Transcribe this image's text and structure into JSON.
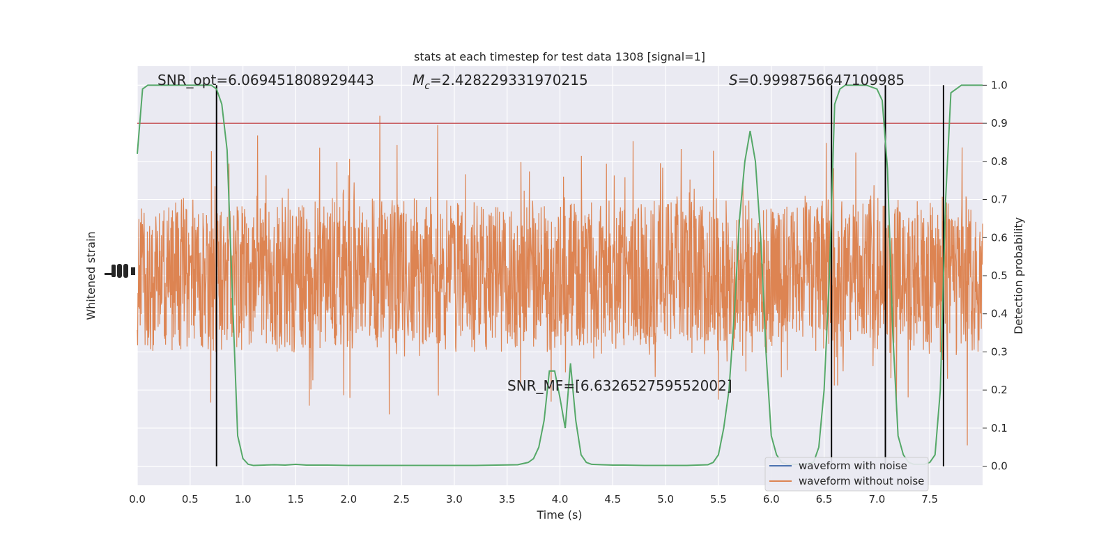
{
  "chart_data": {
    "type": "line",
    "title": "stats at each timestep for test data 1308 [signal=1]",
    "xlabel": "Time (s)",
    "ylabel_left": "Whitened strain",
    "ylabel_right": "Detection probability",
    "xlim": [
      0.0,
      8.0
    ],
    "ylim_right": [
      -0.05,
      1.05
    ],
    "x_ticks": [
      "0.0",
      "0.5",
      "1.0",
      "1.5",
      "2.0",
      "2.5",
      "3.0",
      "3.5",
      "4.0",
      "4.5",
      "5.0",
      "5.5",
      "6.0",
      "6.5",
      "7.0",
      "7.5"
    ],
    "y_ticks_right": [
      "0.0",
      "0.1",
      "0.2",
      "0.3",
      "0.4",
      "0.5",
      "0.6",
      "0.7",
      "0.8",
      "0.9",
      "1.0"
    ],
    "grid": true,
    "legend_position": "lower-right",
    "legend": [
      "waveform with noise",
      "waveform without noise"
    ],
    "annotations": {
      "snr_opt": "SNR_opt=6.069451808929443",
      "mc_symbol": "M",
      "mc_subscript": "c",
      "mc_value": "=2.428229331970215",
      "s_symbol": "S",
      "s_value": "=0.9998756647109985",
      "snr_mf": "SNR_MF=[6.632652759552002]"
    },
    "threshold": 0.9,
    "vertical_lines_x": [
      0.75,
      6.57,
      7.08,
      7.63
    ],
    "series": [
      {
        "name": "waveform with noise",
        "color": "#4c72b0",
        "style": "noise trace hidden behind waveform without noise"
      },
      {
        "name": "waveform without noise",
        "color": "#dd8452",
        "style": "dense noise trace, amplitude roughly 0.3-0.7 in right-axis units with spikes"
      },
      {
        "name": "detection probability",
        "color": "#55a868",
        "x": [
          0.0,
          0.05,
          0.1,
          0.15,
          0.2,
          0.3,
          0.4,
          0.5,
          0.6,
          0.7,
          0.75,
          0.8,
          0.85,
          0.9,
          0.95,
          1.0,
          1.05,
          1.1,
          1.2,
          1.3,
          1.4,
          1.5,
          1.6,
          1.8,
          2.0,
          2.2,
          2.4,
          2.6,
          2.8,
          3.0,
          3.2,
          3.4,
          3.6,
          3.7,
          3.75,
          3.8,
          3.85,
          3.9,
          3.95,
          4.0,
          4.05,
          4.1,
          4.15,
          4.2,
          4.25,
          4.3,
          4.4,
          4.5,
          4.6,
          4.8,
          5.0,
          5.2,
          5.4,
          5.45,
          5.5,
          5.55,
          5.6,
          5.65,
          5.7,
          5.75,
          5.8,
          5.85,
          5.9,
          5.95,
          6.0,
          6.05,
          6.1,
          6.15,
          6.2,
          6.3,
          6.4,
          6.45,
          6.5,
          6.55,
          6.6,
          6.65,
          6.7,
          6.8,
          6.9,
          7.0,
          7.05,
          7.1,
          7.15,
          7.2,
          7.25,
          7.3,
          7.35,
          7.4,
          7.45,
          7.5,
          7.55,
          7.6,
          7.65,
          7.7,
          7.75,
          7.8,
          7.9,
          8.0
        ],
        "values": [
          0.82,
          0.99,
          1.0,
          1.0,
          1.0,
          1.0,
          1.0,
          1.0,
          1.0,
          1.0,
          0.99,
          0.95,
          0.83,
          0.45,
          0.08,
          0.02,
          0.005,
          0.002,
          0.003,
          0.004,
          0.003,
          0.005,
          0.003,
          0.003,
          0.002,
          0.002,
          0.002,
          0.002,
          0.002,
          0.002,
          0.002,
          0.003,
          0.004,
          0.01,
          0.02,
          0.05,
          0.12,
          0.25,
          0.25,
          0.18,
          0.1,
          0.27,
          0.12,
          0.03,
          0.01,
          0.005,
          0.004,
          0.003,
          0.003,
          0.002,
          0.002,
          0.002,
          0.004,
          0.01,
          0.03,
          0.1,
          0.2,
          0.4,
          0.65,
          0.8,
          0.88,
          0.8,
          0.6,
          0.3,
          0.08,
          0.03,
          0.01,
          0.005,
          0.005,
          0.005,
          0.01,
          0.05,
          0.2,
          0.5,
          0.95,
          0.99,
          1.0,
          1.0,
          1.0,
          0.99,
          0.96,
          0.78,
          0.35,
          0.08,
          0.03,
          0.01,
          0.005,
          0.005,
          0.005,
          0.01,
          0.03,
          0.2,
          0.7,
          0.98,
          0.99,
          1.0,
          1.0,
          1.0
        ]
      }
    ]
  }
}
